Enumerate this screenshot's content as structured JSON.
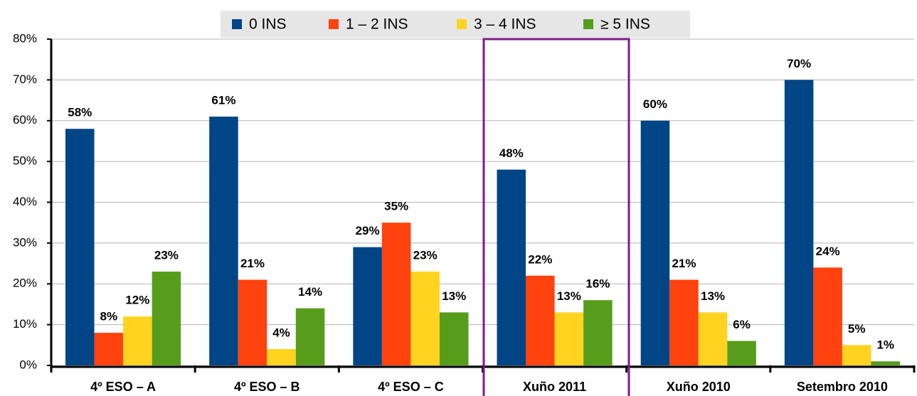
{
  "chart_data": {
    "type": "bar",
    "categories": [
      "4º ESO – A",
      "4º ESO – B",
      "4º ESO – C",
      "Xuño 2011",
      "Xuño 2010",
      "Setembro 2010"
    ],
    "series": [
      {
        "name": "0  INS",
        "color": "#004586",
        "values": [
          58,
          61,
          29,
          48,
          60,
          70
        ],
        "value_labels": [
          "58%",
          "61%",
          "29%",
          "48%",
          "60%",
          "70%"
        ]
      },
      {
        "name": "1 – 2  INS",
        "color": "#ff420e",
        "values": [
          8,
          21,
          35,
          22,
          21,
          24
        ],
        "value_labels": [
          "8%",
          "21%",
          "35%",
          "22%",
          "21%",
          "24%"
        ]
      },
      {
        "name": "3 – 4  INS",
        "color": "#ffd320",
        "values": [
          12,
          4,
          23,
          13,
          13,
          5
        ],
        "value_labels": [
          "12%",
          "4%",
          "23%",
          "13%",
          "13%",
          "5%"
        ]
      },
      {
        "name": "≥ 5  INS",
        "color": "#579d1c",
        "values": [
          23,
          14,
          13,
          16,
          6,
          1
        ],
        "value_labels": [
          "23%",
          "14%",
          "13%",
          "16%",
          "6%",
          "1%"
        ]
      }
    ],
    "ylim": [
      0,
      80
    ],
    "yticks": [
      {
        "value": 0,
        "label": "0%"
      },
      {
        "value": 10,
        "label": "10%"
      },
      {
        "value": 20,
        "label": "20%"
      },
      {
        "value": 30,
        "label": "30%"
      },
      {
        "value": 40,
        "label": "40%"
      },
      {
        "value": 50,
        "label": "50%"
      },
      {
        "value": 60,
        "label": "60%"
      },
      {
        "value": 70,
        "label": "70%"
      },
      {
        "value": 80,
        "label": "80%"
      }
    ],
    "grid": true,
    "legend": "top"
  }
}
